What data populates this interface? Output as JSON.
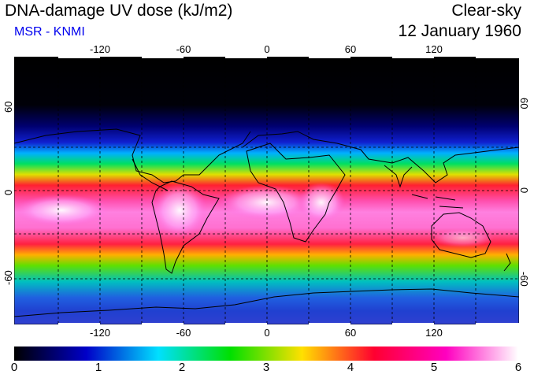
{
  "header": {
    "title": "DNA-damage UV dose (kJ/m2)",
    "source": "MSR - KNMI",
    "sky_condition": "Clear-sky",
    "date": "12 January 1960"
  },
  "map": {
    "lon_ticks": [
      "-120",
      "-60",
      "0",
      "60",
      "120"
    ],
    "lat_ticks": [
      "60",
      "0",
      "-60"
    ]
  },
  "colorbar": {
    "labels": [
      "0",
      "1",
      "2",
      "3",
      "4",
      "5",
      "6"
    ],
    "min": 0,
    "max": 6,
    "colors": [
      "#000000",
      "#0000c8",
      "#00e0ff",
      "#00e000",
      "#ffe000",
      "#ff0030",
      "#ff00c0",
      "#ffffff"
    ]
  }
}
